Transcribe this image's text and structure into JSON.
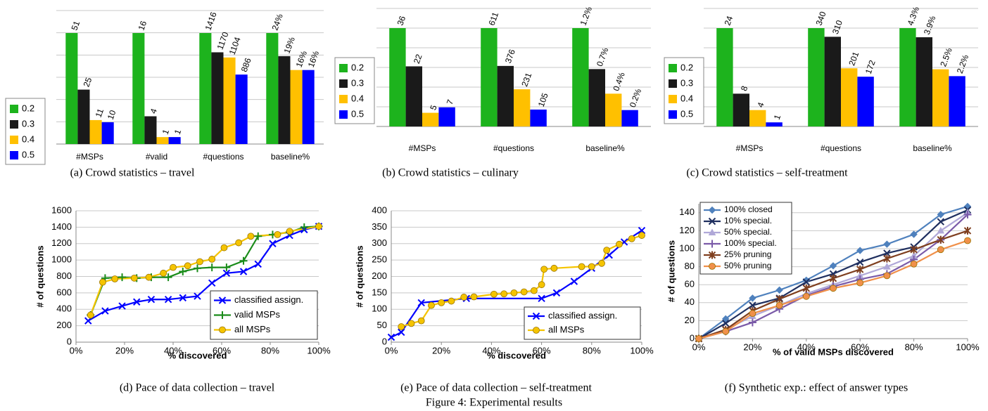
{
  "caption": "Figure 4: Experimental results",
  "chart_data": [
    {
      "type": "bar",
      "caption": "(a) Crowd statistics – travel",
      "legend": "left",
      "categories": [
        "#MSPs",
        "#valid",
        "#questions",
        "baseline%"
      ],
      "series": [
        {
          "name": "0.2",
          "color": "#1db31d",
          "values": [
            51,
            16,
            1416,
            24
          ],
          "value_labels": [
            "51",
            "16",
            "1416",
            "24%"
          ]
        },
        {
          "name": "0.3",
          "color": "#1a1a1a",
          "values": [
            25,
            4,
            1170,
            19
          ],
          "value_labels": [
            "25",
            "4",
            "1170",
            "19%"
          ]
        },
        {
          "name": "0.4",
          "color": "#ffc000",
          "values": [
            11,
            1,
            1104,
            16
          ],
          "value_labels": [
            "11",
            "1",
            "1104",
            "16%"
          ]
        },
        {
          "name": "0.5",
          "color": "#0000ff",
          "values": [
            10,
            1,
            886,
            16
          ],
          "value_labels": [
            "10",
            "1",
            "886",
            "16%"
          ]
        }
      ]
    },
    {
      "type": "bar",
      "caption": "(b) Crowd statistics – culinary",
      "legend": "left",
      "categories": [
        "#MSPs",
        "#questions",
        "baseline%"
      ],
      "series": [
        {
          "name": "0.2",
          "color": "#1db31d",
          "values": [
            36,
            611,
            1.2
          ],
          "value_labels": [
            "36",
            "611",
            "1.2%"
          ]
        },
        {
          "name": "0.3",
          "color": "#1a1a1a",
          "values": [
            22,
            376,
            0.7
          ],
          "value_labels": [
            "22",
            "376",
            "0.7%"
          ]
        },
        {
          "name": "0.4",
          "color": "#ffc000",
          "values": [
            5,
            231,
            0.4
          ],
          "value_labels": [
            "5",
            "231",
            "0.4%"
          ]
        },
        {
          "name": "0.5",
          "color": "#0000ff",
          "values": [
            7,
            105,
            0.2
          ],
          "value_labels": [
            "7",
            "105",
            "0.2%"
          ]
        }
      ]
    },
    {
      "type": "bar",
      "caption": "(c) Crowd statistics – self-treatment",
      "legend": "left",
      "categories": [
        "#MSPs",
        "#questions",
        "baseline%"
      ],
      "series": [
        {
          "name": "0.2",
          "color": "#1db31d",
          "values": [
            24,
            340,
            4.3
          ],
          "value_labels": [
            "24",
            "340",
            "4.3%"
          ]
        },
        {
          "name": "0.3",
          "color": "#1a1a1a",
          "values": [
            8,
            310,
            3.9
          ],
          "value_labels": [
            "8",
            "310",
            "3.9%"
          ]
        },
        {
          "name": "0.4",
          "color": "#ffc000",
          "values": [
            4,
            201,
            2.5
          ],
          "value_labels": [
            "4",
            "201",
            "2.5%"
          ]
        },
        {
          "name": "0.5",
          "color": "#0000ff",
          "values": [
            1,
            172,
            2.2
          ],
          "value_labels": [
            "1",
            "172",
            "2.2%"
          ]
        }
      ]
    },
    {
      "type": "line",
      "caption": "(d) Pace of data collection – travel",
      "xlabel": "% discovered",
      "ylabel": "# of questions",
      "xlim": [
        0,
        100
      ],
      "ylim": [
        0,
        1600
      ],
      "grid": true,
      "legend": "lower right",
      "xticks": [
        {
          "value": 0,
          "label": "0%"
        },
        {
          "value": 20,
          "label": "20%"
        },
        {
          "value": 40,
          "label": "40%"
        },
        {
          "value": 60,
          "label": "60%"
        },
        {
          "value": 80,
          "label": "80%"
        },
        {
          "value": 100,
          "label": "100%"
        }
      ],
      "yticks": [
        0,
        200,
        400,
        600,
        800,
        1000,
        1200,
        1400,
        1600
      ],
      "series": [
        {
          "name": "classified assign.",
          "color": "#0000ff",
          "marker": "x",
          "x": [
            5,
            12,
            19,
            25,
            31,
            38,
            44,
            50,
            56,
            62,
            69,
            75,
            81,
            88,
            94,
            100
          ],
          "values": [
            260,
            380,
            440,
            490,
            520,
            520,
            540,
            560,
            720,
            840,
            860,
            950,
            1200,
            1300,
            1370,
            1410
          ]
        },
        {
          "name": "valid MSPs",
          "color": "#1a8c1a",
          "marker": "plus",
          "x": [
            6,
            12,
            19,
            25,
            31,
            38,
            44,
            50,
            56,
            62,
            69,
            75,
            81,
            88,
            94,
            100
          ],
          "values": [
            330,
            780,
            790,
            780,
            790,
            790,
            860,
            900,
            910,
            910,
            990,
            1290,
            1310,
            1340,
            1400,
            1410
          ]
        },
        {
          "name": "all MSPs",
          "color": "#f5c400",
          "marker": "circle",
          "x": [
            6,
            11,
            16,
            24,
            30,
            36,
            40,
            46,
            51,
            56,
            61,
            67,
            72,
            83,
            88,
            100
          ],
          "values": [
            330,
            730,
            770,
            780,
            790,
            840,
            910,
            930,
            980,
            1010,
            1150,
            1210,
            1290,
            1310,
            1350,
            1410
          ]
        }
      ]
    },
    {
      "type": "line",
      "caption": "(e) Pace of data collection – self-treatment",
      "xlabel": "% discovered",
      "ylabel": "# of questions",
      "xlim": [
        0,
        100
      ],
      "ylim": [
        0,
        400
      ],
      "grid": true,
      "legend": "lower right",
      "xticks": [
        {
          "value": 0,
          "label": "0%"
        },
        {
          "value": 20,
          "label": "20%"
        },
        {
          "value": 40,
          "label": "40%"
        },
        {
          "value": 60,
          "label": "60%"
        },
        {
          "value": 80,
          "label": "80%"
        },
        {
          "value": 100,
          "label": "100%"
        }
      ],
      "yticks": [
        0,
        50,
        100,
        150,
        200,
        250,
        300,
        350,
        400
      ],
      "series": [
        {
          "name": "classified assign.",
          "color": "#0000ff",
          "marker": "x",
          "x": [
            0,
            4,
            12,
            30,
            60,
            66,
            73,
            80,
            87,
            93,
            100
          ],
          "values": [
            15,
            30,
            120,
            133,
            133,
            150,
            185,
            225,
            265,
            305,
            340
          ]
        },
        {
          "name": "all MSPs",
          "color": "#f5c400",
          "marker": "circle",
          "x": [
            4,
            8,
            12,
            16,
            20,
            24,
            29,
            33,
            41,
            45,
            49,
            53,
            57,
            60,
            61,
            65,
            76,
            80,
            84,
            86,
            91,
            96,
            100
          ],
          "values": [
            47,
            57,
            65,
            112,
            120,
            125,
            137,
            138,
            146,
            147,
            150,
            153,
            157,
            175,
            222,
            225,
            230,
            230,
            240,
            280,
            298,
            315,
            325
          ]
        }
      ]
    },
    {
      "type": "line",
      "caption": "(f) Synthetic exp.: effect of answer types",
      "xlabel": "% of valid MSPs discovered",
      "ylabel": "# of questions",
      "xlim": [
        0,
        100
      ],
      "ylim": [
        0,
        150
      ],
      "grid": true,
      "legend": "upper left",
      "xticks": [
        {
          "value": 0,
          "label": "0%"
        },
        {
          "value": 20,
          "label": "20%"
        },
        {
          "value": 40,
          "label": "40%"
        },
        {
          "value": 60,
          "label": "60%"
        },
        {
          "value": 80,
          "label": "80%"
        },
        {
          "value": 100,
          "label": "100%"
        }
      ],
      "yticks": [
        0,
        20,
        40,
        60,
        80,
        100,
        120,
        140
      ],
      "x": [
        0,
        10,
        20,
        30,
        40,
        50,
        60,
        70,
        80,
        90,
        100
      ],
      "series": [
        {
          "name": "100% closed",
          "color": "#4f81bd",
          "marker": "diamond",
          "values": [
            0,
            22,
            45,
            54,
            65,
            81,
            98,
            105,
            116,
            138,
            147
          ]
        },
        {
          "name": "10% special.",
          "color": "#1f2f5f",
          "marker": "x",
          "values": [
            0,
            17,
            37,
            45,
            63,
            72,
            85,
            95,
            102,
            130,
            143
          ]
        },
        {
          "name": "50% special.",
          "color": "#b0a8d8",
          "marker": "triangle",
          "values": [
            0,
            10,
            25,
            37,
            50,
            60,
            70,
            80,
            92,
            120,
            140
          ]
        },
        {
          "name": "100% special.",
          "color": "#7a5aa8",
          "marker": "plus",
          "values": [
            0,
            8,
            18,
            33,
            48,
            58,
            66,
            72,
            88,
            110,
            138
          ]
        },
        {
          "name": "25% pruning",
          "color": "#7f3f1f",
          "marker": "star",
          "values": [
            0,
            10,
            31,
            44,
            56,
            67,
            77,
            89,
            99,
            110,
            120
          ]
        },
        {
          "name": "50% pruning",
          "color": "#f0904a",
          "marker": "circle",
          "values": [
            0,
            8,
            28,
            37,
            47,
            56,
            62,
            70,
            83,
            99,
            109
          ]
        }
      ]
    }
  ]
}
